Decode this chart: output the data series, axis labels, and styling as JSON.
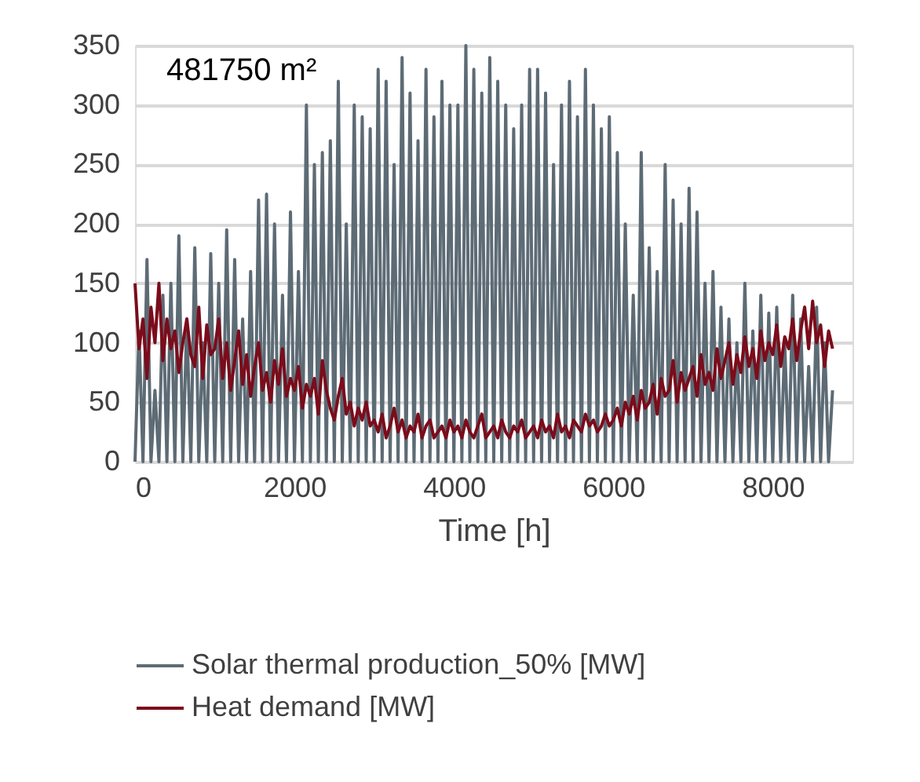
{
  "chart_data": {
    "type": "line",
    "xlabel": "Time [h]",
    "annotations": [
      "481750 m²"
    ],
    "x": [
      0,
      50,
      100,
      150,
      200,
      250,
      300,
      350,
      400,
      450,
      500,
      550,
      600,
      650,
      700,
      750,
      800,
      850,
      900,
      950,
      1000,
      1050,
      1100,
      1150,
      1200,
      1250,
      1300,
      1350,
      1400,
      1450,
      1500,
      1550,
      1600,
      1650,
      1700,
      1750,
      1800,
      1850,
      1900,
      1950,
      2000,
      2050,
      2100,
      2150,
      2200,
      2250,
      2300,
      2350,
      2400,
      2450,
      2500,
      2550,
      2600,
      2650,
      2700,
      2750,
      2800,
      2850,
      2900,
      2950,
      3000,
      3050,
      3100,
      3150,
      3200,
      3250,
      3300,
      3350,
      3400,
      3450,
      3500,
      3550,
      3600,
      3650,
      3700,
      3750,
      3800,
      3850,
      3900,
      3950,
      4000,
      4050,
      4100,
      4150,
      4200,
      4250,
      4300,
      4350,
      4400,
      4450,
      4500,
      4550,
      4600,
      4650,
      4700,
      4750,
      4800,
      4850,
      4900,
      4950,
      5000,
      5050,
      5100,
      5150,
      5200,
      5250,
      5300,
      5350,
      5400,
      5450,
      5500,
      5550,
      5600,
      5650,
      5700,
      5750,
      5800,
      5850,
      5900,
      5950,
      6000,
      6050,
      6100,
      6150,
      6200,
      6250,
      6300,
      6350,
      6400,
      6450,
      6500,
      6550,
      6600,
      6650,
      6700,
      6750,
      6800,
      6850,
      6900,
      6950,
      7000,
      7050,
      7100,
      7150,
      7200,
      7250,
      7300,
      7350,
      7400,
      7450,
      7500,
      7550,
      7600,
      7650,
      7700,
      7750,
      7800,
      7850,
      7900,
      7950,
      8000,
      8050,
      8100,
      8150,
      8200,
      8250,
      8300,
      8350,
      8400,
      8450,
      8500,
      8550,
      8600,
      8650,
      8700,
      8750
    ],
    "series": [
      {
        "name": "Solar thermal production_50% [MW]",
        "color": "#5d6b75",
        "values": [
          0,
          110,
          0,
          170,
          0,
          60,
          0,
          140,
          0,
          150,
          0,
          190,
          0,
          120,
          0,
          180,
          0,
          100,
          0,
          175,
          0,
          150,
          0,
          195,
          0,
          170,
          0,
          120,
          0,
          160,
          0,
          220,
          0,
          225,
          0,
          200,
          0,
          140,
          0,
          210,
          0,
          160,
          0,
          300,
          0,
          250,
          0,
          260,
          0,
          270,
          0,
          320,
          0,
          200,
          0,
          300,
          0,
          290,
          0,
          280,
          0,
          330,
          0,
          320,
          0,
          250,
          0,
          340,
          0,
          310,
          0,
          270,
          0,
          330,
          0,
          290,
          0,
          320,
          0,
          300,
          0,
          300,
          0,
          350,
          0,
          330,
          0,
          310,
          0,
          340,
          0,
          320,
          0,
          300,
          0,
          280,
          0,
          300,
          0,
          330,
          0,
          330,
          0,
          310,
          0,
          250,
          0,
          300,
          0,
          320,
          0,
          290,
          0,
          330,
          0,
          300,
          0,
          280,
          0,
          290,
          0,
          260,
          0,
          200,
          0,
          140,
          0,
          260,
          0,
          180,
          0,
          160,
          0,
          250,
          0,
          220,
          0,
          200,
          0,
          230,
          0,
          210,
          0,
          150,
          0,
          160,
          0,
          130,
          0,
          120,
          0,
          100,
          0,
          150,
          0,
          110,
          0,
          140,
          0,
          125,
          0,
          130,
          0,
          100,
          0,
          140,
          0,
          120,
          0,
          80,
          0,
          130,
          0,
          100,
          0,
          60
        ]
      },
      {
        "name": "Heat demand [MW]",
        "color": "#7b0c1b",
        "values": [
          150,
          95,
          120,
          70,
          130,
          100,
          150,
          85,
          120,
          95,
          110,
          75,
          100,
          120,
          90,
          80,
          130,
          70,
          115,
          90,
          95,
          120,
          70,
          100,
          60,
          85,
          110,
          65,
          90,
          55,
          80,
          100,
          60,
          75,
          50,
          85,
          65,
          95,
          55,
          70,
          60,
          80,
          45,
          65,
          55,
          70,
          40,
          85,
          60,
          45,
          35,
          55,
          70,
          40,
          50,
          30,
          45,
          35,
          50,
          30,
          35,
          25,
          40,
          20,
          30,
          45,
          25,
          35,
          20,
          30,
          25,
          40,
          20,
          30,
          35,
          20,
          25,
          30,
          20,
          35,
          25,
          30,
          20,
          35,
          25,
          20,
          30,
          40,
          20,
          25,
          30,
          20,
          35,
          25,
          20,
          30,
          25,
          35,
          20,
          25,
          30,
          20,
          35,
          25,
          30,
          20,
          40,
          25,
          30,
          20,
          35,
          30,
          25,
          40,
          30,
          35,
          25,
          30,
          40,
          30,
          35,
          45,
          30,
          50,
          40,
          55,
          35,
          60,
          45,
          50,
          65,
          40,
          70,
          55,
          60,
          85,
          50,
          75,
          60,
          70,
          80,
          55,
          90,
          65,
          75,
          60,
          95,
          70,
          85,
          100,
          65,
          90,
          75,
          105,
          80,
          95,
          70,
          110,
          85,
          100,
          90,
          115,
          80,
          105,
          95,
          120,
          85,
          110,
          130,
          95,
          135,
          100,
          115,
          80,
          110,
          95
        ]
      }
    ],
    "xlim": [
      0,
      9000
    ],
    "xticks": [
      0,
      2000,
      4000,
      6000,
      8000
    ],
    "ylim": [
      0,
      350
    ],
    "yticks": [
      0,
      50,
      100,
      150,
      200,
      250,
      300,
      350
    ],
    "grid": "y",
    "legend": "bottom",
    "line_style": "solid"
  }
}
